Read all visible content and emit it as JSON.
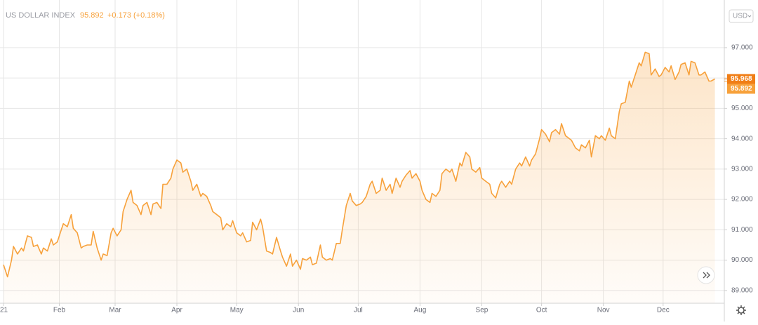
{
  "chart_data": {
    "type": "line",
    "title": "US DOLLAR INDEX",
    "price": "95.892",
    "change": "+0.173 (+0.18%)",
    "currency": "USD",
    "color": "#f7a13b",
    "area": true,
    "grid": true,
    "x": [
      3,
      5,
      7,
      8,
      10,
      12,
      13,
      15,
      17,
      18,
      20,
      22,
      23,
      25,
      27,
      28,
      30,
      32,
      33,
      35,
      37,
      38,
      40,
      42,
      43,
      45,
      47,
      48,
      50,
      52,
      53,
      55,
      57,
      58,
      60,
      62,
      63,
      65,
      67,
      68,
      70,
      72,
      73,
      75,
      77,
      78,
      80,
      82,
      83,
      85,
      87,
      88,
      90,
      92,
      93,
      95,
      97,
      98,
      100,
      102,
      103,
      105,
      107,
      108,
      110,
      112,
      113,
      115,
      117,
      118,
      120,
      122,
      123,
      125,
      127,
      128,
      130,
      132,
      133,
      135,
      137,
      138,
      140,
      142,
      143,
      145,
      147,
      148,
      150,
      152,
      153,
      155,
      157,
      158,
      160,
      162,
      163,
      165,
      167,
      168,
      170,
      172,
      173,
      175,
      177,
      178,
      180,
      182,
      183,
      185,
      187,
      188,
      190,
      192,
      193,
      195,
      197,
      198,
      200,
      202,
      203,
      205,
      207,
      208,
      210,
      212,
      213,
      215,
      217,
      218,
      220,
      222,
      223,
      225,
      227,
      228,
      230,
      232,
      233,
      235,
      237,
      238,
      240,
      242,
      243,
      245,
      247,
      248,
      250,
      252,
      253,
      255,
      257,
      258,
      260,
      262,
      263,
      265,
      267,
      268,
      270,
      272,
      273,
      275,
      277,
      278,
      280,
      282,
      283,
      285,
      287,
      288,
      290,
      292,
      293,
      295,
      297,
      298,
      300,
      302,
      303,
      305,
      307,
      308,
      310,
      312,
      313,
      315,
      317,
      318,
      320,
      322,
      323,
      325,
      327,
      328,
      330,
      332,
      333,
      335,
      337,
      338,
      340,
      342,
      343,
      345,
      347,
      348,
      350,
      352,
      353,
      355,
      357,
      358,
      360
    ],
    "values": [
      89.85,
      89.45,
      90.0,
      90.45,
      90.2,
      90.4,
      90.3,
      90.8,
      90.75,
      90.45,
      90.5,
      90.2,
      90.4,
      90.3,
      90.7,
      90.5,
      90.6,
      91.0,
      91.2,
      91.1,
      91.5,
      91.05,
      90.9,
      90.4,
      90.45,
      90.5,
      90.5,
      90.95,
      90.4,
      90.0,
      90.2,
      90.15,
      90.9,
      91.05,
      90.8,
      91.0,
      91.6,
      92.0,
      92.3,
      91.9,
      91.8,
      91.5,
      91.8,
      91.9,
      91.5,
      91.85,
      91.9,
      91.7,
      92.5,
      92.5,
      92.7,
      93.0,
      93.3,
      93.2,
      92.9,
      93.0,
      92.6,
      92.3,
      92.5,
      92.1,
      92.2,
      92.1,
      91.8,
      91.6,
      91.5,
      91.4,
      91.0,
      91.2,
      91.1,
      91.3,
      90.9,
      90.8,
      90.9,
      90.6,
      90.65,
      91.25,
      91.0,
      91.35,
      91.1,
      90.3,
      90.25,
      90.2,
      90.75,
      90.3,
      90.1,
      89.8,
      90.2,
      89.8,
      90.0,
      89.7,
      90.05,
      90.0,
      90.1,
      89.85,
      89.9,
      90.5,
      90.1,
      90.0,
      90.05,
      90.0,
      90.55,
      90.55,
      91.0,
      91.8,
      92.2,
      91.95,
      91.8,
      91.85,
      91.9,
      92.1,
      92.5,
      92.6,
      92.2,
      92.3,
      92.7,
      92.3,
      92.5,
      92.2,
      92.7,
      92.4,
      92.6,
      92.8,
      92.95,
      92.7,
      92.85,
      92.6,
      92.3,
      92.0,
      91.9,
      92.2,
      92.1,
      92.3,
      92.85,
      93.0,
      92.9,
      93.0,
      92.6,
      93.2,
      93.1,
      93.55,
      93.4,
      93.0,
      92.9,
      93.05,
      92.7,
      92.6,
      92.5,
      92.2,
      92.05,
      92.5,
      92.6,
      92.4,
      92.6,
      92.5,
      93.0,
      93.2,
      93.1,
      93.4,
      93.1,
      93.3,
      93.5,
      94.0,
      94.3,
      94.15,
      93.9,
      94.2,
      94.3,
      94.15,
      94.5,
      94.1,
      94.0,
      93.95,
      93.7,
      93.6,
      93.8,
      93.7,
      93.95,
      93.4,
      94.1,
      94.0,
      94.1,
      93.95,
      94.35,
      94.1,
      94.0,
      94.9,
      95.15,
      95.2,
      95.9,
      95.7,
      96.1,
      96.5,
      96.4,
      96.85,
      96.8,
      96.1,
      96.3,
      96.05,
      96.1,
      96.35,
      96.2,
      96.4,
      95.95,
      96.2,
      96.45,
      96.5,
      96.1,
      96.55,
      96.5,
      96.1,
      96.1,
      96.2,
      95.9,
      95.9,
      95.97
    ],
    "xlim": [
      3,
      364
    ],
    "xticks": [
      {
        "value": 3,
        "label": "21"
      },
      {
        "value": 31,
        "label": "Feb"
      },
      {
        "value": 59,
        "label": "Mar"
      },
      {
        "value": 90,
        "label": "Apr"
      },
      {
        "value": 120,
        "label": "May"
      },
      {
        "value": 151,
        "label": "Jun"
      },
      {
        "value": 181,
        "label": "Jul"
      },
      {
        "value": 212,
        "label": "Aug"
      },
      {
        "value": 243,
        "label": "Sep"
      },
      {
        "value": 273,
        "label": "Oct"
      },
      {
        "value": 304,
        "label": "Nov"
      },
      {
        "value": 334,
        "label": "Dec"
      }
    ],
    "ylim": [
      88.58,
      98.57
    ],
    "yticks": [
      {
        "value": 89,
        "label": "89.000"
      },
      {
        "value": 90,
        "label": "90.000"
      },
      {
        "value": 91,
        "label": "91.000"
      },
      {
        "value": 92,
        "label": "92.000"
      },
      {
        "value": 93,
        "label": "93.000"
      },
      {
        "value": 94,
        "label": "94.000"
      },
      {
        "value": 95,
        "label": "95.000"
      },
      {
        "value": 96,
        "label": "96.000"
      },
      {
        "value": 97,
        "label": "97.000"
      }
    ],
    "price_tags": [
      {
        "value": 95.968,
        "label": "95.968",
        "color": "#f07e16"
      },
      {
        "value": 95.892,
        "label": "95.892",
        "color": "#f7a13b"
      }
    ]
  }
}
